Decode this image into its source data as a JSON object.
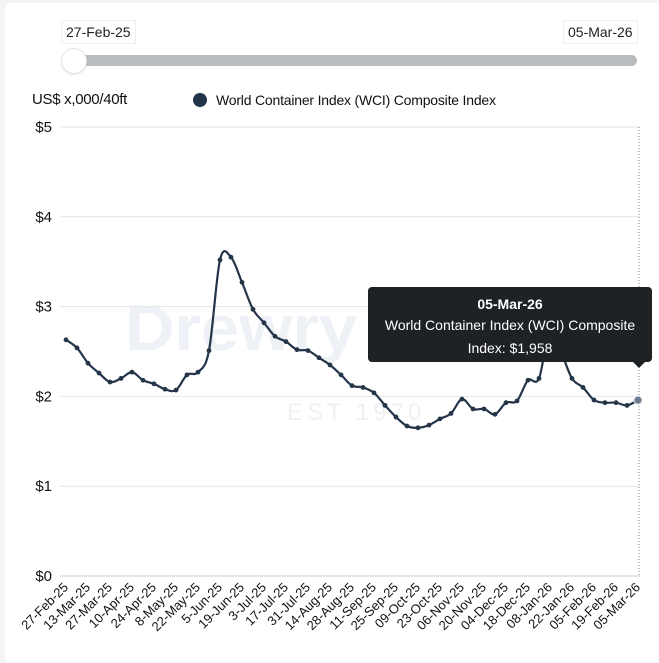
{
  "range_slider": {
    "start_label": "27-Feb-25",
    "end_label": "05-Mar-26",
    "start_position": 0,
    "end_position": 1
  },
  "watermark": {
    "logo": "Drewry",
    "est": "EST 1970"
  },
  "tooltip": {
    "date": "05-Mar-26",
    "series": "World Container Index (WCI) Composite",
    "value_text": "Index: $1,958"
  },
  "chart_data": {
    "type": "line",
    "ylabel": "US$ x,000/40ft",
    "ylim": [
      0,
      5
    ],
    "y_ticks": [
      "$0",
      "$1",
      "$2",
      "$3",
      "$4",
      "$5"
    ],
    "grid": "horizontal",
    "legend_position": "top",
    "line_color": "#253549",
    "x_tick_labels": [
      "27-Feb-25",
      "13-Mar-25",
      "27-Mar-25",
      "10-Apr-25",
      "24-Apr-25",
      "8-May-25",
      "22-May-25",
      "5-Jun-25",
      "19-Jun-25",
      "3-Jul-25",
      "17-Jul-25",
      "31-Jul-25",
      "14-Aug-25",
      "28-Aug-25",
      "11-Sep-25",
      "25-Sep-25",
      "09-Oct-25",
      "23-Oct-25",
      "06-Nov-25",
      "20-Nov-25",
      "04-Dec-25",
      "18-Dec-25",
      "08-Jan-26",
      "22-Jan-26",
      "05-Feb-26",
      "19-Feb-26",
      "05-Mar-26"
    ],
    "series": [
      {
        "name": "World Container Index (WCI) Composite Index",
        "values": [
          2.63,
          2.54,
          2.37,
          2.26,
          2.16,
          2.2,
          2.27,
          2.18,
          2.14,
          2.08,
          2.07,
          2.24,
          2.27,
          2.51,
          3.52,
          3.55,
          3.27,
          2.97,
          2.82,
          2.67,
          2.61,
          2.52,
          2.51,
          2.43,
          2.35,
          2.24,
          2.12,
          2.1,
          2.04,
          1.9,
          1.77,
          1.67,
          1.65,
          1.68,
          1.75,
          1.81,
          1.97,
          1.86,
          1.86,
          1.8,
          1.93,
          1.95,
          2.18,
          2.2,
          2.75,
          2.5,
          2.2,
          2.1,
          1.96,
          1.93,
          1.93,
          1.9,
          1.958
        ]
      }
    ]
  }
}
